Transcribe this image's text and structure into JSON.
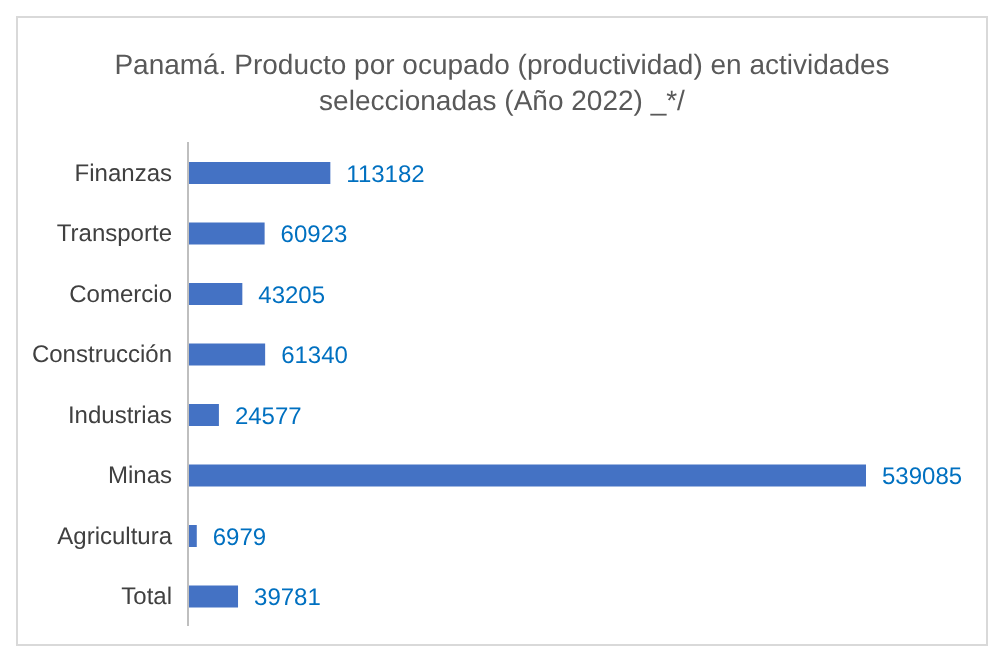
{
  "chart_data": {
    "type": "bar",
    "orientation": "horizontal",
    "title": "Panamá. Producto por ocupado (productividad) en actividades seleccionadas (Año 2022) _*/",
    "categories": [
      "Finanzas",
      "Transporte",
      "Comercio",
      "Construcción",
      "Industrias",
      "Minas",
      "Agricultura",
      "Total"
    ],
    "values": [
      113182,
      60923,
      43205,
      61340,
      24577,
      539085,
      6979,
      39781
    ],
    "color": "#4472c4",
    "data_labels": true,
    "grid": false,
    "legend": false
  }
}
